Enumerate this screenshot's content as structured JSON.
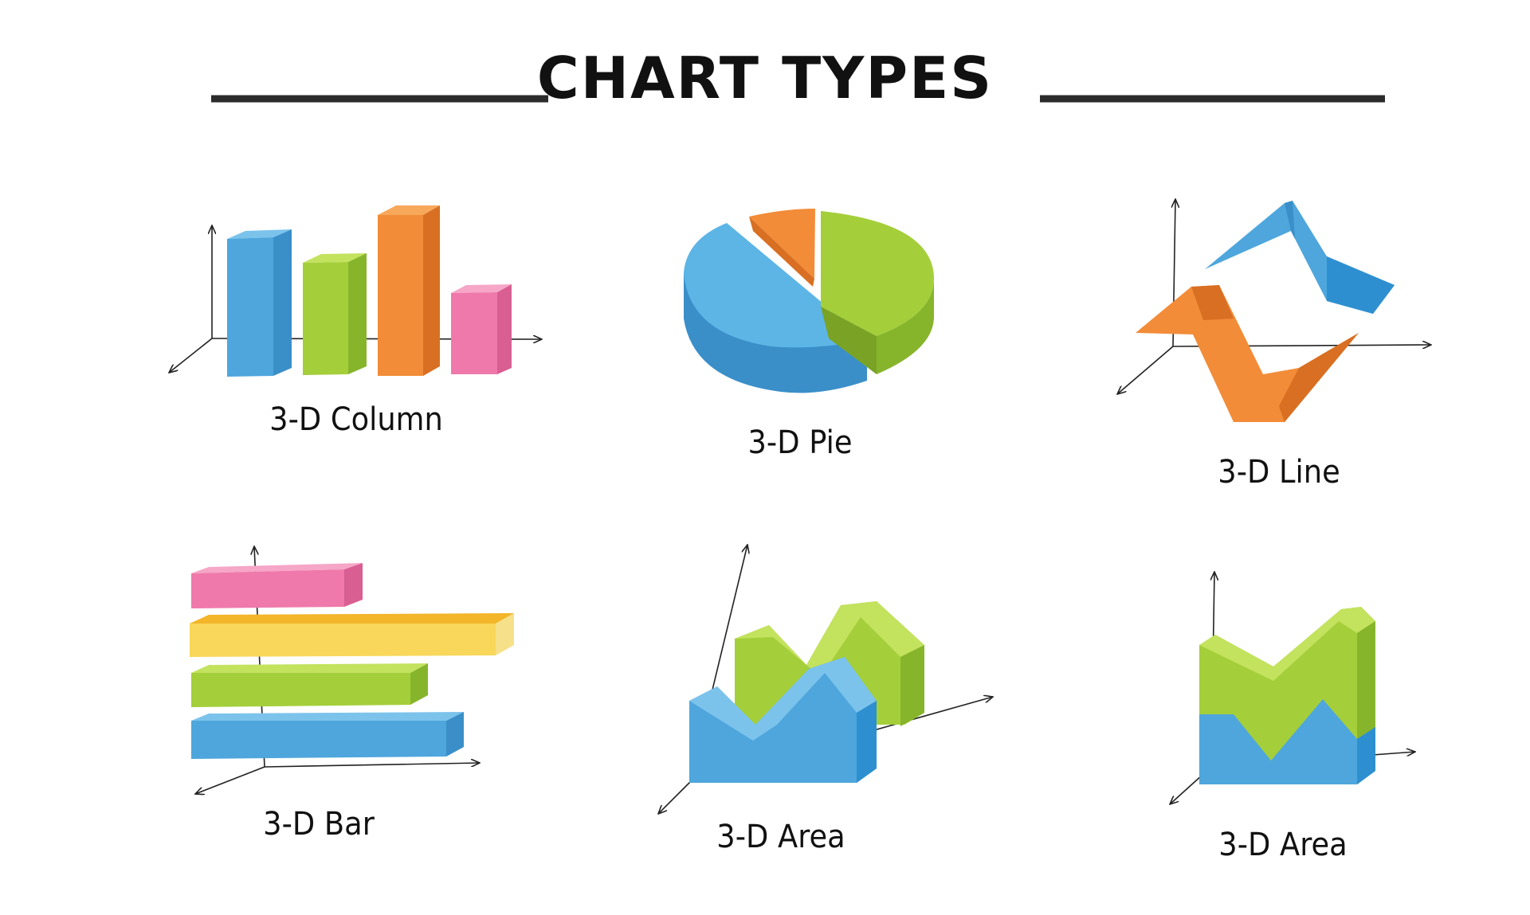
{
  "title": "CHART TYPES",
  "captions": {
    "column": "3-D Column",
    "pie": "3-D Pie",
    "line": "3-D Line",
    "bar": "3-D Bar",
    "area1": "3-D Area",
    "area2": "3-D Area"
  },
  "colors": {
    "blue": "#4ea6dc",
    "green": "#a4cf3a",
    "orange": "#f28c38",
    "pink": "#ef79aa",
    "yellow": "#f8cf4c",
    "ink": "#222222"
  }
}
